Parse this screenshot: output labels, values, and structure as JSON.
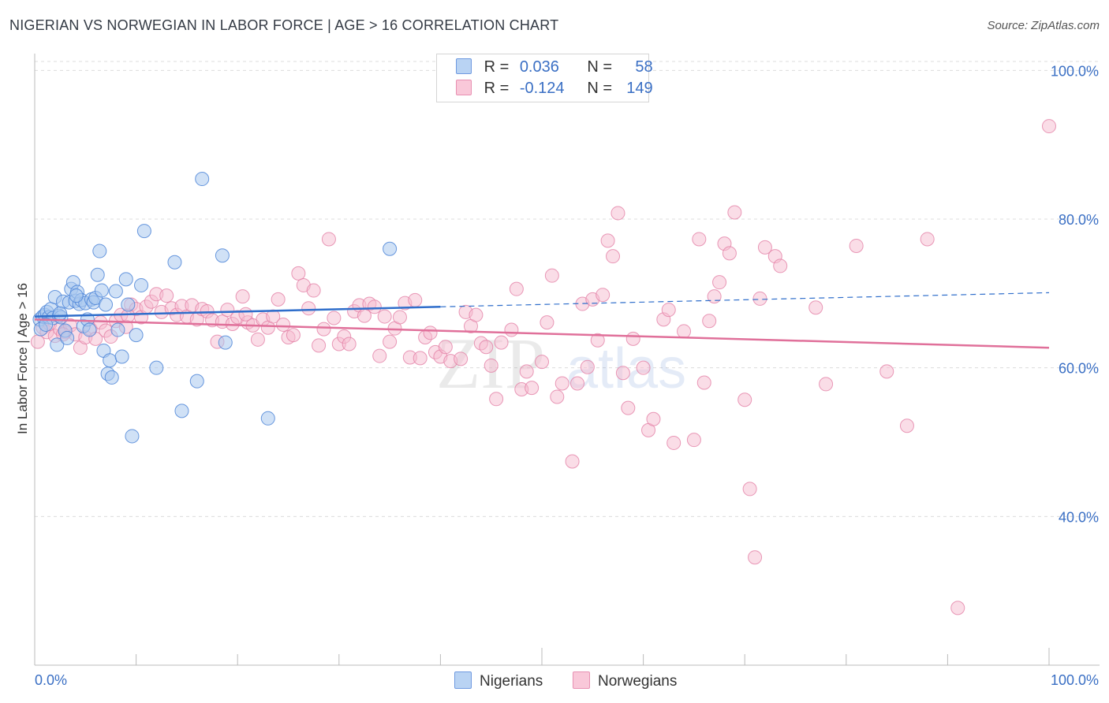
{
  "title": "NIGERIAN VS NORWEGIAN IN LABOR FORCE | AGE > 16 CORRELATION CHART",
  "source": "Source: ZipAtlas.com",
  "colors": {
    "nigerian_fill": "#a9c8ef",
    "nigerian_stroke": "#4f86d8",
    "nigerian_line": "#2f6ecb",
    "norwegian_fill": "#f6bcd0",
    "norwegian_stroke": "#e481a6",
    "norwegian_line": "#e0709a",
    "axis_label": "#3a6fc4"
  },
  "legend": {
    "nigerian": {
      "r_label": "R =",
      "r_value": "0.036",
      "n_label": "N =",
      "n_value": "58"
    },
    "norwegian": {
      "r_label": "R =",
      "r_value": "-0.124",
      "n_label": "N =",
      "n_value": "149"
    }
  },
  "chart_data": {
    "type": "scatter",
    "title": "NIGERIAN VS NORWEGIAN IN LABOR FORCE | AGE > 16 CORRELATION CHART",
    "xlabel": "",
    "ylabel": "In Labor Force | Age > 16",
    "xlim": [
      0,
      100
    ],
    "ylim": [
      20,
      100
    ],
    "x_tick_labels": [
      "0.0%",
      "100.0%"
    ],
    "y_tick_labels": [
      "40.0%",
      "60.0%",
      "80.0%",
      "100.0%"
    ],
    "y_ticks": [
      40,
      60,
      80,
      100
    ],
    "grid": true,
    "legend_position": "bottom-center",
    "watermark": "ZIPatlas",
    "series": [
      {
        "name": "Nigerians",
        "r": 0.036,
        "n": 58,
        "trend": {
          "x0": 0,
          "y0": 66.9,
          "x1": 40,
          "y1": 68.2,
          "dashed_to_x": 100,
          "dashed_y": 70.1
        },
        "points": [
          [
            0.5,
            66.5
          ],
          [
            0.6,
            65.2
          ],
          [
            0.8,
            66.9
          ],
          [
            1.0,
            67.1
          ],
          [
            1.2,
            67.5
          ],
          [
            1.4,
            66.8
          ],
          [
            1.6,
            67.9
          ],
          [
            1.8,
            66.7
          ],
          [
            2.0,
            69.5
          ],
          [
            2.2,
            63.1
          ],
          [
            2.4,
            67.0
          ],
          [
            2.6,
            66.8
          ],
          [
            2.8,
            68.9
          ],
          [
            3.0,
            65.0
          ],
          [
            3.2,
            64.0
          ],
          [
            3.4,
            68.8
          ],
          [
            3.6,
            70.6
          ],
          [
            3.8,
            71.5
          ],
          [
            4.0,
            69.0
          ],
          [
            4.2,
            70.2
          ],
          [
            4.4,
            68.6
          ],
          [
            4.6,
            69.1
          ],
          [
            4.8,
            65.6
          ],
          [
            5.0,
            68.7
          ],
          [
            5.2,
            66.5
          ],
          [
            5.4,
            65.1
          ],
          [
            5.6,
            69.2
          ],
          [
            5.8,
            68.8
          ],
          [
            6.0,
            69.4
          ],
          [
            6.2,
            72.5
          ],
          [
            6.4,
            75.7
          ],
          [
            6.6,
            70.4
          ],
          [
            6.8,
            62.3
          ],
          [
            7.0,
            68.5
          ],
          [
            7.2,
            59.2
          ],
          [
            7.4,
            61.0
          ],
          [
            7.6,
            58.7
          ],
          [
            8.0,
            70.3
          ],
          [
            8.2,
            65.1
          ],
          [
            8.6,
            61.5
          ],
          [
            9.0,
            71.9
          ],
          [
            9.2,
            68.5
          ],
          [
            9.6,
            50.8
          ],
          [
            10.0,
            64.4
          ],
          [
            10.5,
            71.1
          ],
          [
            10.8,
            78.4
          ],
          [
            12.0,
            60.0
          ],
          [
            13.8,
            74.2
          ],
          [
            14.5,
            54.2
          ],
          [
            16.0,
            58.2
          ],
          [
            16.5,
            85.4
          ],
          [
            18.5,
            75.1
          ],
          [
            18.8,
            63.4
          ],
          [
            23.0,
            53.2
          ],
          [
            35.0,
            76.0
          ],
          [
            1.1,
            65.8
          ],
          [
            2.5,
            67.3
          ],
          [
            4.1,
            69.7
          ]
        ]
      },
      {
        "name": "Norwegians",
        "r": -0.124,
        "n": 149,
        "trend": {
          "x0": 0,
          "y0": 66.5,
          "x1": 100,
          "y1": 62.7
        },
        "points": [
          [
            0.3,
            63.5
          ],
          [
            0.8,
            65.4
          ],
          [
            1.2,
            64.8
          ],
          [
            1.5,
            65.9
          ],
          [
            2.0,
            64.3
          ],
          [
            2.5,
            65.2
          ],
          [
            3.0,
            64.8
          ],
          [
            3.5,
            65.7
          ],
          [
            4.0,
            64.5
          ],
          [
            4.5,
            62.7
          ],
          [
            5.0,
            64.1
          ],
          [
            5.5,
            65.2
          ],
          [
            6.0,
            63.9
          ],
          [
            6.5,
            66.1
          ],
          [
            7.0,
            65.0
          ],
          [
            7.5,
            64.2
          ],
          [
            8.0,
            66.3
          ],
          [
            8.5,
            67.1
          ],
          [
            9.0,
            65.5
          ],
          [
            9.5,
            68.5
          ],
          [
            10.0,
            67.9
          ],
          [
            10.5,
            66.8
          ],
          [
            11.0,
            68.2
          ],
          [
            11.5,
            68.9
          ],
          [
            12.0,
            69.9
          ],
          [
            12.5,
            67.5
          ],
          [
            13.0,
            69.7
          ],
          [
            13.5,
            68.0
          ],
          [
            14.0,
            67.1
          ],
          [
            14.5,
            68.3
          ],
          [
            15.0,
            66.9
          ],
          [
            15.5,
            68.4
          ],
          [
            16.0,
            66.5
          ],
          [
            16.5,
            67.9
          ],
          [
            17.0,
            67.6
          ],
          [
            17.5,
            66.4
          ],
          [
            18.0,
            63.5
          ],
          [
            18.5,
            66.2
          ],
          [
            19.0,
            67.8
          ],
          [
            19.5,
            65.9
          ],
          [
            20.0,
            66.8
          ],
          [
            20.5,
            69.6
          ],
          [
            21.0,
            66.1
          ],
          [
            21.5,
            65.7
          ],
          [
            22.0,
            63.8
          ],
          [
            22.5,
            66.5
          ],
          [
            23.0,
            65.4
          ],
          [
            23.5,
            66.9
          ],
          [
            24.0,
            69.2
          ],
          [
            24.5,
            65.8
          ],
          [
            25.0,
            64.1
          ],
          [
            25.5,
            64.4
          ],
          [
            26.0,
            72.7
          ],
          [
            26.5,
            71.1
          ],
          [
            27.0,
            68.0
          ],
          [
            27.5,
            70.4
          ],
          [
            28.0,
            63.0
          ],
          [
            28.5,
            65.2
          ],
          [
            29.0,
            77.3
          ],
          [
            29.5,
            66.7
          ],
          [
            30.0,
            63.2
          ],
          [
            30.5,
            64.2
          ],
          [
            31.0,
            63.2
          ],
          [
            31.5,
            67.6
          ],
          [
            32.0,
            68.4
          ],
          [
            32.5,
            67.0
          ],
          [
            33.0,
            68.6
          ],
          [
            33.5,
            68.2
          ],
          [
            34.0,
            61.6
          ],
          [
            34.5,
            66.9
          ],
          [
            35.0,
            63.5
          ],
          [
            35.5,
            65.3
          ],
          [
            36.0,
            66.8
          ],
          [
            36.5,
            68.7
          ],
          [
            37.0,
            61.4
          ],
          [
            37.5,
            69.1
          ],
          [
            38.0,
            61.3
          ],
          [
            38.5,
            64.1
          ],
          [
            39.0,
            64.7
          ],
          [
            39.5,
            62.1
          ],
          [
            40.0,
            61.5
          ],
          [
            40.5,
            62.8
          ],
          [
            41.0,
            60.9
          ],
          [
            42.0,
            61.2
          ],
          [
            42.5,
            67.5
          ],
          [
            43.0,
            65.6
          ],
          [
            43.5,
            67.1
          ],
          [
            44.0,
            63.3
          ],
          [
            44.5,
            62.8
          ],
          [
            45.0,
            60.3
          ],
          [
            45.5,
            55.8
          ],
          [
            46.0,
            63.4
          ],
          [
            47.0,
            65.1
          ],
          [
            47.5,
            70.6
          ],
          [
            48.0,
            57.1
          ],
          [
            48.5,
            59.5
          ],
          [
            49.0,
            57.3
          ],
          [
            50.0,
            60.8
          ],
          [
            50.5,
            66.1
          ],
          [
            51.0,
            72.4
          ],
          [
            51.5,
            56.1
          ],
          [
            52.0,
            57.9
          ],
          [
            53.0,
            47.4
          ],
          [
            53.5,
            57.9
          ],
          [
            54.0,
            68.6
          ],
          [
            54.5,
            60.1
          ],
          [
            55.0,
            69.2
          ],
          [
            55.5,
            63.7
          ],
          [
            56.0,
            69.8
          ],
          [
            56.5,
            77.1
          ],
          [
            57.0,
            75.0
          ],
          [
            57.5,
            80.8
          ],
          [
            58.0,
            59.3
          ],
          [
            58.5,
            54.6
          ],
          [
            59.0,
            63.9
          ],
          [
            60.0,
            60.0
          ],
          [
            60.5,
            51.6
          ],
          [
            61.0,
            53.1
          ],
          [
            62.0,
            66.5
          ],
          [
            62.5,
            67.8
          ],
          [
            63.0,
            49.9
          ],
          [
            64.0,
            64.9
          ],
          [
            65.0,
            50.3
          ],
          [
            65.5,
            77.3
          ],
          [
            66.0,
            58.0
          ],
          [
            66.5,
            66.3
          ],
          [
            67.0,
            69.6
          ],
          [
            67.5,
            71.5
          ],
          [
            68.0,
            76.7
          ],
          [
            68.5,
            75.4
          ],
          [
            69.0,
            80.9
          ],
          [
            70.0,
            55.7
          ],
          [
            70.5,
            43.7
          ],
          [
            71.0,
            34.5
          ],
          [
            71.5,
            69.3
          ],
          [
            72.0,
            76.2
          ],
          [
            73.0,
            75.0
          ],
          [
            73.5,
            73.7
          ],
          [
            77.0,
            68.1
          ],
          [
            78.0,
            57.8
          ],
          [
            81.0,
            76.4
          ],
          [
            84.0,
            59.5
          ],
          [
            86.0,
            52.2
          ],
          [
            88.0,
            77.3
          ],
          [
            91.0,
            27.7
          ],
          [
            100.0,
            92.5
          ],
          [
            2.8,
            64.5
          ],
          [
            9.2,
            67.0
          ],
          [
            20.8,
            67.2
          ]
        ]
      }
    ]
  },
  "bottom_legend": [
    {
      "label": "Nigerians"
    },
    {
      "label": "Norwegians"
    }
  ]
}
